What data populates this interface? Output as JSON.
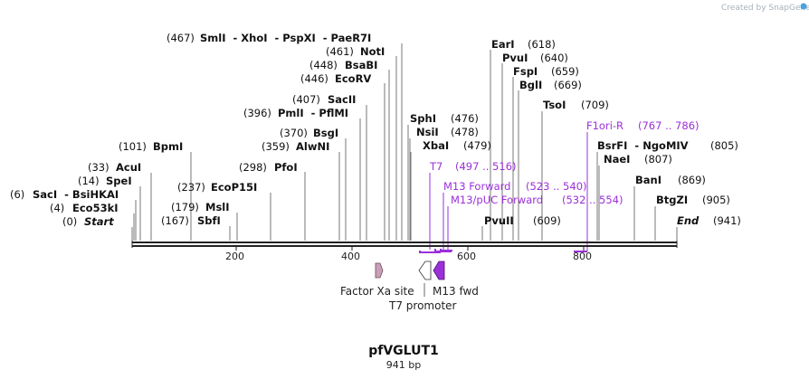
{
  "brand": "Created by SnapGene",
  "plasmid": {
    "name": "pfVGLUT1",
    "length_label": "941 bp"
  },
  "axis": {
    "ticks": [
      "200",
      "400",
      "600",
      "800"
    ]
  },
  "sites": [
    {
      "pos": "(467)",
      "names": "SmlI  - XhoI  - PspXI  - PaeR7I"
    },
    {
      "pos": "(461)",
      "names": "NotI"
    },
    {
      "pos": "(448)",
      "names": "BsaBI"
    },
    {
      "pos": "(446)",
      "names": "EcoRV"
    },
    {
      "pos": "(407)",
      "names": "SacII"
    },
    {
      "pos": "(396)",
      "names": "PmlI  - PflMI"
    },
    {
      "pos": "(370)",
      "names": "BsgI"
    },
    {
      "pos": "(359)",
      "names": "AlwNI"
    },
    {
      "pos": "(298)",
      "names": "PfoI"
    },
    {
      "pos": "(237)",
      "names": "EcoP15I"
    },
    {
      "pos": "(179)",
      "names": "MslI"
    },
    {
      "pos": "(167)",
      "names": "SbfI"
    },
    {
      "pos": "(101)",
      "names": "BpmI"
    },
    {
      "pos": "(33)",
      "names": "AcuI"
    },
    {
      "pos": "(14)",
      "names": "SpeI"
    },
    {
      "pos": "(6)",
      "names": "SacI  - BsiHKAI"
    },
    {
      "pos": "(4)",
      "names": "Eco53kI"
    },
    {
      "pos": "(0)",
      "names": "Start"
    },
    {
      "pos": "(618)",
      "names": "EarI"
    },
    {
      "pos": "(640)",
      "names": "PvuI"
    },
    {
      "pos": "(659)",
      "names": "FspI"
    },
    {
      "pos": "(669)",
      "names": "BglI"
    },
    {
      "pos": "(709)",
      "names": "TsoI"
    },
    {
      "pos": "(476)",
      "names": "SphI"
    },
    {
      "pos": "(478)",
      "names": "NsiI"
    },
    {
      "pos": "(479)",
      "names": "XbaI"
    },
    {
      "pos": "(805)",
      "names": "BsrFI  - NgoMIV"
    },
    {
      "pos": "(807)",
      "names": "NaeI"
    },
    {
      "pos": "(869)",
      "names": "BanI"
    },
    {
      "pos": "(905)",
      "names": "BtgZI"
    },
    {
      "pos": "(941)",
      "names": "End"
    },
    {
      "pos": "(609)",
      "names": "PvuII"
    }
  ],
  "primers": [
    {
      "name": "T7",
      "range": "(497 .. 516)"
    },
    {
      "name": "M13 Forward",
      "range": "(523 .. 540)"
    },
    {
      "name": "M13/pUC Forward",
      "range": "(532 .. 554)"
    },
    {
      "name": "F1ori-R",
      "range": "(767 .. 786)"
    }
  ],
  "features": [
    {
      "name": "Factor Xa site",
      "color": "#c8a0b8"
    },
    {
      "name": "T7 promoter",
      "color": "#ffffff"
    },
    {
      "name": "M13 fwd",
      "color": "#9b30d9"
    }
  ],
  "colors": {
    "primer": "#9b30d9",
    "line": "#333333"
  }
}
